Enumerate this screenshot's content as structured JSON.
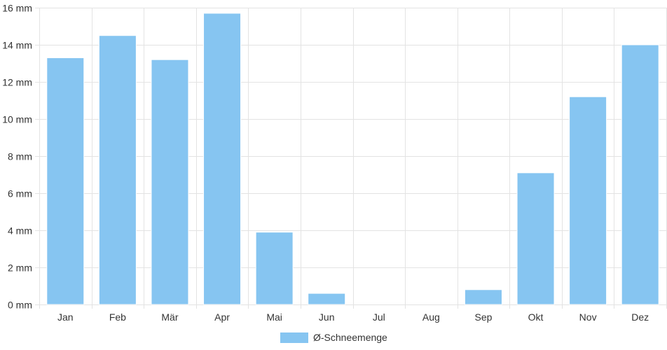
{
  "chart_data": {
    "type": "bar",
    "categories": [
      "Jan",
      "Feb",
      "Mär",
      "Apr",
      "Mai",
      "Jun",
      "Jul",
      "Aug",
      "Sep",
      "Okt",
      "Nov",
      "Dez"
    ],
    "series": [
      {
        "name": "Ø-Schneemenge",
        "values": [
          13.3,
          14.5,
          13.2,
          15.7,
          3.9,
          0.6,
          0,
          0,
          0.8,
          7.1,
          11.2,
          14.0
        ],
        "color": "#86c5f1"
      }
    ],
    "y_unit": "mm",
    "y_ticks": [
      "0 mm",
      "2 mm",
      "4 mm",
      "6 mm",
      "8 mm",
      "10 mm",
      "12 mm",
      "14 mm",
      "16 mm"
    ],
    "ylim": [
      0,
      16
    ],
    "grid": true,
    "legend_position": "bottom"
  }
}
